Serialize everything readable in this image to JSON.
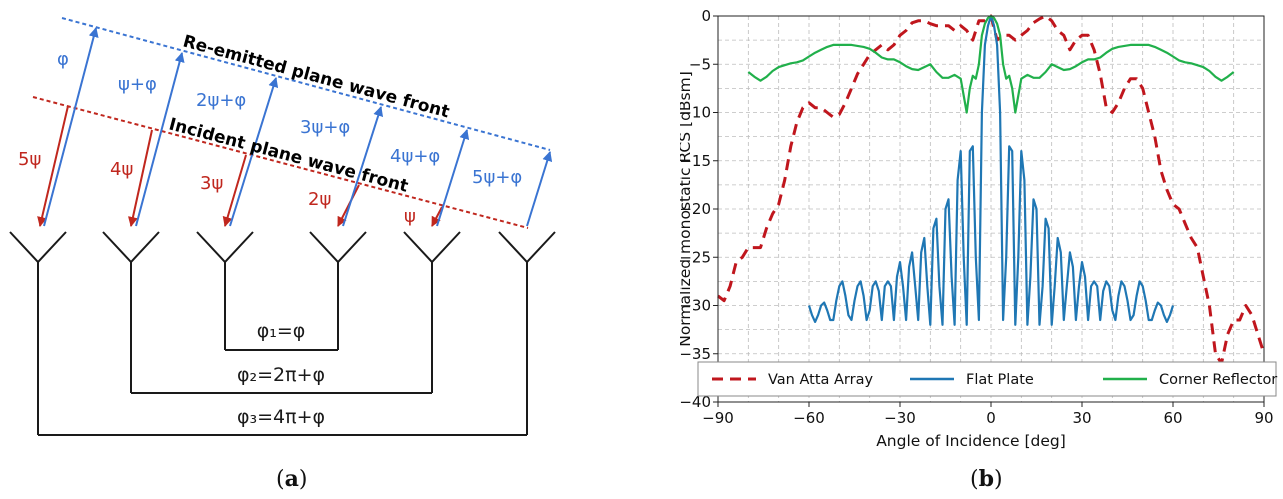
{
  "diagram": {
    "reemitted_front_label": "Re-emitted plane wave front",
    "incident_front_label": "Incident plane wave front",
    "incident_phase_labels": [
      "5ψ",
      "4ψ",
      "3ψ",
      "2ψ",
      "ψ"
    ],
    "reemitted_phase_labels": [
      "φ",
      "ψ+φ",
      "2ψ+φ",
      "3ψ+φ",
      "4ψ+φ",
      "5ψ+φ"
    ],
    "line_phase_labels": [
      "φ₁=φ",
      "φ₂=2π+φ",
      "φ₃=4π+φ"
    ],
    "colors": {
      "incident": "#c0271e",
      "reemitted": "#3a74d2",
      "structure": "#1a1a1a"
    }
  },
  "captions": {
    "a": "a",
    "b": "b"
  },
  "chart_data": {
    "type": "line",
    "xlabel": "Angle of Incidence [deg]",
    "ylabel": "Normalized monostatic RCS [dBsm]",
    "xlim": [
      -90,
      90
    ],
    "ylim": [
      -40,
      0
    ],
    "xticks": [
      -90,
      -60,
      -30,
      0,
      30,
      60,
      90
    ],
    "yticks": [
      0,
      -5,
      -10,
      -15,
      -20,
      -25,
      -30,
      -35,
      -40
    ],
    "grid": true,
    "legend_position": "bottom",
    "series": [
      {
        "name": "Van Atta Array",
        "color": "#c0161d",
        "style": "dashed",
        "x": [
          -90,
          -88,
          -86,
          -84,
          -82,
          -80,
          -78,
          -76,
          -74,
          -72,
          -70,
          -68,
          -66,
          -64,
          -62,
          -60,
          -58,
          -56,
          -54,
          -52,
          -50,
          -48,
          -46,
          -44,
          -42,
          -40,
          -38,
          -36,
          -34,
          -32,
          -30,
          -28,
          -26,
          -24,
          -22,
          -20,
          -18,
          -16,
          -14,
          -12,
          -10,
          -8,
          -6,
          -4,
          -2,
          0,
          2,
          4,
          6,
          8,
          10,
          12,
          14,
          16,
          18,
          20,
          22,
          24,
          26,
          28,
          30,
          32,
          34,
          36,
          38,
          40,
          42,
          44,
          46,
          48,
          50,
          52,
          54,
          56,
          58,
          60,
          62,
          64,
          66,
          68,
          70,
          72,
          74,
          76,
          78,
          80,
          82,
          84,
          86,
          88,
          90
        ],
        "y": [
          -29,
          -29.5,
          -28,
          -25.5,
          -25,
          -24,
          -24,
          -24,
          -22,
          -20.5,
          -19.5,
          -17,
          -13.5,
          -11,
          -9.5,
          -9,
          -9.5,
          -9.5,
          -10,
          -10.5,
          -10.2,
          -9,
          -7.5,
          -6,
          -5,
          -4,
          -3.5,
          -3,
          -3.5,
          -3,
          -2,
          -1.5,
          -0.7,
          -0.5,
          -0.5,
          -0.8,
          -1,
          -1,
          -1,
          -1.5,
          -1,
          -1.5,
          -2.5,
          -0.5,
          -0.5,
          0,
          -2.5,
          -2,
          -2,
          -2.5,
          -2,
          -1.5,
          -0.7,
          -0.3,
          0,
          -0.5,
          -1.5,
          -2,
          -3.5,
          -2.5,
          -2,
          -2,
          -3.5,
          -6,
          -9.5,
          -10,
          -9,
          -7.5,
          -6.5,
          -6.5,
          -7.5,
          -10,
          -12.5,
          -16,
          -18,
          -19.5,
          -20,
          -21.5,
          -23,
          -24,
          -27,
          -30,
          -35,
          -36,
          -33,
          -31.5,
          -31.5,
          -30,
          -31,
          -33,
          -35
        ]
      },
      {
        "name": "Flat Plate",
        "color": "#1f77b4",
        "style": "solid",
        "x": [
          -60,
          -59,
          -58,
          -57,
          -56,
          -55,
          -54,
          -53,
          -52,
          -51,
          -50,
          -49,
          -48,
          -47,
          -46,
          -45,
          -44,
          -43,
          -42,
          -41,
          -40,
          -39,
          -38,
          -37,
          -36,
          -35,
          -34,
          -33,
          -32,
          -31,
          -30,
          -29,
          -28,
          -27,
          -26,
          -25,
          -24,
          -23,
          -22,
          -21,
          -20,
          -19,
          -18,
          -17,
          -16,
          -15,
          -14,
          -13,
          -12,
          -11,
          -10,
          -9,
          -8,
          -7,
          -6,
          -5,
          -4,
          -3,
          -2,
          -1,
          0,
          1,
          2,
          3,
          4,
          5,
          6,
          7,
          8,
          9,
          10,
          11,
          12,
          13,
          14,
          15,
          16,
          17,
          18,
          19,
          20,
          21,
          22,
          23,
          24,
          25,
          26,
          27,
          28,
          29,
          30,
          31,
          32,
          33,
          34,
          35,
          36,
          37,
          38,
          39,
          40,
          41,
          42,
          43,
          44,
          45,
          46,
          47,
          48,
          49,
          50,
          51,
          52,
          53,
          54,
          55,
          56,
          57,
          58,
          59,
          60
        ],
        "y": [
          -30,
          -31,
          -31.7,
          -31,
          -30,
          -29.7,
          -30.5,
          -31.5,
          -31.5,
          -29.5,
          -28,
          -27.5,
          -29,
          -31,
          -31.5,
          -29.5,
          -28,
          -27.5,
          -29,
          -31.5,
          -30.5,
          -28,
          -27.5,
          -28.5,
          -31.5,
          -28,
          -27.5,
          -28,
          -31.5,
          -27,
          -25.5,
          -28,
          -31.5,
          -26,
          -24.5,
          -28,
          -31.5,
          -24.5,
          -23,
          -28,
          -32,
          -22,
          -21,
          -28,
          -32,
          -20,
          -19,
          -27,
          -32,
          -17,
          -14,
          -25,
          -32,
          -14,
          -13.5,
          -25,
          -31.5,
          -10,
          -3,
          -1,
          0,
          -1,
          -3,
          -10,
          -31.5,
          -25,
          -13.5,
          -14,
          -32,
          -25,
          -14,
          -17,
          -32,
          -27,
          -19,
          -20,
          -32,
          -28,
          -21,
          -22,
          -32,
          -28,
          -23,
          -24.5,
          -31.5,
          -28,
          -24.5,
          -26,
          -31.5,
          -28,
          -25.5,
          -27,
          -31.5,
          -28,
          -27.5,
          -28,
          -31.5,
          -28.5,
          -27.5,
          -28,
          -30.5,
          -31.5,
          -29,
          -27.5,
          -28,
          -29.5,
          -31.5,
          -31,
          -29,
          -27.5,
          -28,
          -29.5,
          -31.5,
          -31.5,
          -30.5,
          -29.7,
          -30,
          -31,
          -31.7,
          -31,
          -30
        ]
      },
      {
        "name": "Corner Reflector",
        "color": "#21b04b",
        "style": "solid",
        "x": [
          -80,
          -78,
          -76,
          -74,
          -72,
          -70,
          -68,
          -66,
          -64,
          -62,
          -60,
          -58,
          -56,
          -54,
          -52,
          -50,
          -48,
          -46,
          -44,
          -42,
          -40,
          -38,
          -36,
          -34,
          -32,
          -30,
          -28,
          -26,
          -24,
          -22,
          -20,
          -18,
          -16,
          -14,
          -12,
          -10,
          -8,
          -7,
          -6,
          -5,
          -4,
          -3,
          -2,
          -1,
          0,
          1,
          2,
          3,
          4,
          5,
          6,
          7,
          8,
          10,
          12,
          14,
          16,
          18,
          20,
          22,
          24,
          26,
          28,
          30,
          32,
          34,
          36,
          38,
          40,
          42,
          44,
          46,
          48,
          50,
          52,
          54,
          56,
          58,
          60,
          62,
          64,
          66,
          68,
          70,
          72,
          74,
          76,
          78,
          80
        ],
        "y": [
          -5.8,
          -6.3,
          -6.7,
          -6.3,
          -5.7,
          -5.3,
          -5.1,
          -4.9,
          -4.8,
          -4.6,
          -4.2,
          -3.8,
          -3.5,
          -3.2,
          -3.0,
          -3.0,
          -3.0,
          -3.0,
          -3.1,
          -3.2,
          -3.4,
          -3.8,
          -4.3,
          -4.5,
          -4.5,
          -4.8,
          -5.2,
          -5.5,
          -5.6,
          -5.3,
          -5.0,
          -5.8,
          -6.4,
          -6.4,
          -6.1,
          -6.5,
          -10,
          -7.5,
          -6.2,
          -6.5,
          -5,
          -2,
          -0.8,
          -0.2,
          0,
          -0.2,
          -0.8,
          -2,
          -5,
          -6.5,
          -6.2,
          -7.5,
          -10,
          -6.5,
          -6.1,
          -6.4,
          -6.4,
          -5.8,
          -5.0,
          -5.3,
          -5.6,
          -5.5,
          -5.2,
          -4.8,
          -4.5,
          -4.5,
          -4.3,
          -3.8,
          -3.4,
          -3.2,
          -3.1,
          -3.0,
          -3.0,
          -3.0,
          -3.0,
          -3.2,
          -3.5,
          -3.8,
          -4.2,
          -4.6,
          -4.8,
          -4.9,
          -5.1,
          -5.3,
          -5.7,
          -6.3,
          -6.7,
          -6.3,
          -5.8
        ]
      }
    ]
  }
}
